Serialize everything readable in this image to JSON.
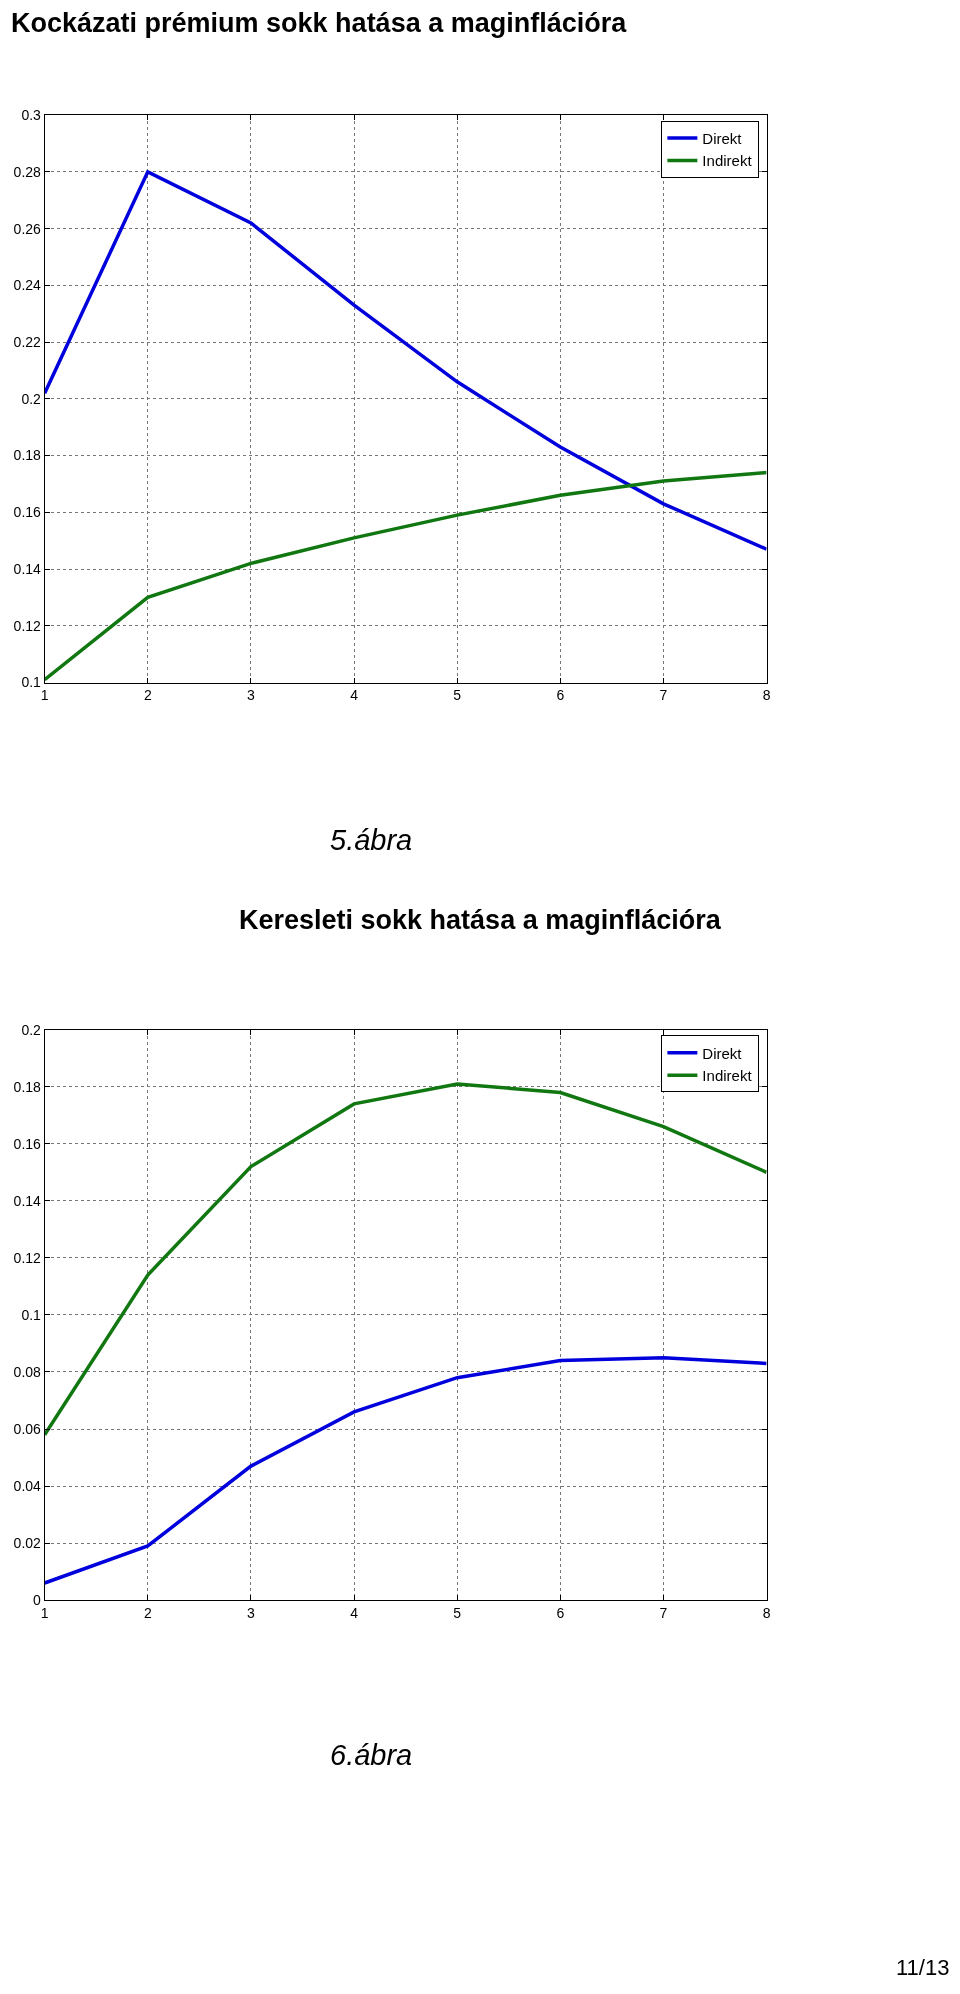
{
  "chart_data": [
    {
      "type": "line",
      "title": "Kockázati prémium sokk hatása a maginflációra",
      "x": [
        1,
        2,
        3,
        4,
        5,
        6,
        7,
        8
      ],
      "series": [
        {
          "name": "Direkt",
          "color": "#0000dd",
          "values": [
            0.202,
            0.28,
            0.262,
            0.233,
            0.206,
            0.183,
            0.163,
            0.147
          ]
        },
        {
          "name": "Indirekt",
          "color": "#117711",
          "values": [
            0.101,
            0.13,
            0.142,
            0.151,
            0.159,
            0.166,
            0.171,
            0.174
          ]
        }
      ],
      "xlim": [
        1,
        8
      ],
      "xticks": [
        1,
        2,
        3,
        4,
        5,
        6,
        7,
        8
      ],
      "ylim": [
        0.1,
        0.3
      ],
      "yticks": [
        0.1,
        0.12,
        0.14,
        0.16,
        0.18,
        0.2,
        0.22,
        0.24,
        0.26,
        0.28,
        0.3
      ],
      "grid": true,
      "legend": "top right",
      "marker": "none",
      "line_style": "solid",
      "annotations": [
        "5.ábra"
      ]
    },
    {
      "type": "line",
      "title": "Keresleti sokk hatása a maginflációra",
      "x": [
        1,
        2,
        3,
        4,
        5,
        6,
        7,
        8
      ],
      "series": [
        {
          "name": "Direkt",
          "color": "#0000dd",
          "values": [
            0.006,
            0.019,
            0.047,
            0.066,
            0.078,
            0.084,
            0.085,
            0.083
          ]
        },
        {
          "name": "Indirekt",
          "color": "#117711",
          "values": [
            0.058,
            0.114,
            0.152,
            0.174,
            0.181,
            0.178,
            0.166,
            0.15
          ]
        }
      ],
      "xlim": [
        1,
        8
      ],
      "xticks": [
        1,
        2,
        3,
        4,
        5,
        6,
        7,
        8
      ],
      "ylim": [
        0,
        0.2
      ],
      "yticks": [
        0,
        0.02,
        0.04,
        0.06,
        0.08,
        0.1,
        0.12,
        0.14,
        0.16,
        0.18,
        0.2
      ],
      "grid": true,
      "legend": "top right",
      "marker": "none",
      "line_style": "solid",
      "annotations": [
        "6.ábra",
        "11/13"
      ]
    }
  ]
}
